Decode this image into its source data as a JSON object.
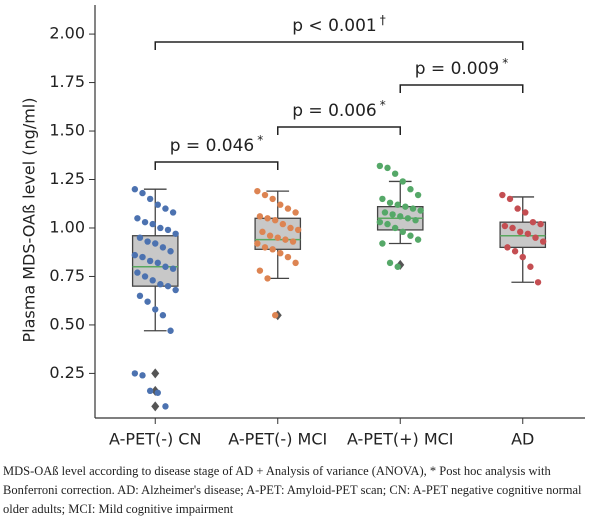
{
  "chart_data": {
    "type": "box",
    "y_label": "Plasma MDS-OAß level (ng/ml)",
    "categories": [
      "A-PET(-) CN",
      "A-PET(-) MCI",
      "A-PET(+) MCI",
      "AD"
    ],
    "ylim": [
      0.02,
      2.15
    ],
    "yticks": [
      {
        "value": 0.25,
        "label": "0.25"
      },
      {
        "value": 0.5,
        "label": "0.50"
      },
      {
        "value": 0.75,
        "label": "0.75"
      },
      {
        "value": 1,
        "label": "1.00"
      },
      {
        "value": 1.25,
        "label": "1.25"
      },
      {
        "value": 1.5,
        "label": "1.50"
      },
      {
        "value": 1.75,
        "label": "1.75"
      },
      {
        "value": 2,
        "label": "2.00"
      }
    ],
    "box_color": "#c8c8c8",
    "median_color": "#5aa85f",
    "boxes": [
      {
        "color": "#4c72b0",
        "q1": 0.7,
        "median": 0.8,
        "q3": 0.96,
        "whislo": 0.47,
        "whishi": 1.2,
        "outliers": [
          0.25,
          0.16,
          0.08
        ],
        "points": [
          1.2,
          1.18,
          1.15,
          1.12,
          1.1,
          1.08,
          1.05,
          1.03,
          1.02,
          1.0,
          0.99,
          0.97,
          0.95,
          0.93,
          0.92,
          0.9,
          0.88,
          0.86,
          0.85,
          0.83,
          0.82,
          0.8,
          0.79,
          0.77,
          0.75,
          0.73,
          0.71,
          0.7,
          0.68,
          0.65,
          0.62,
          0.58,
          0.55,
          0.47,
          0.25,
          0.24,
          0.16,
          0.15,
          0.08
        ]
      },
      {
        "color": "#dd8452",
        "q1": 0.89,
        "median": 0.94,
        "q3": 1.05,
        "whislo": 0.74,
        "whishi": 1.19,
        "outliers": [
          0.55
        ],
        "points": [
          1.19,
          1.17,
          1.15,
          1.12,
          1.1,
          1.08,
          1.06,
          1.05,
          1.04,
          1.02,
          1.0,
          0.99,
          0.98,
          0.96,
          0.95,
          0.94,
          0.93,
          0.92,
          0.9,
          0.89,
          0.87,
          0.85,
          0.82,
          0.78,
          0.74,
          0.55
        ]
      },
      {
        "color": "#55a868",
        "q1": 0.99,
        "median": 1.05,
        "q3": 1.11,
        "whislo": 0.92,
        "whishi": 1.24,
        "outliers": [
          0.81
        ],
        "points": [
          1.32,
          1.31,
          1.28,
          1.24,
          1.2,
          1.17,
          1.15,
          1.13,
          1.12,
          1.11,
          1.1,
          1.09,
          1.08,
          1.07,
          1.06,
          1.05,
          1.04,
          1.03,
          1.02,
          1.0,
          0.98,
          0.96,
          0.94,
          0.92,
          0.82,
          0.8
        ]
      },
      {
        "color": "#c44e52",
        "q1": 0.9,
        "median": 0.96,
        "q3": 1.03,
        "whislo": 0.72,
        "whishi": 1.16,
        "outliers": [],
        "points": [
          1.17,
          1.15,
          1.1,
          1.08,
          1.03,
          1.02,
          1.01,
          1.0,
          0.98,
          0.97,
          0.95,
          0.93,
          0.9,
          0.88,
          0.85,
          0.8,
          0.72
        ]
      }
    ],
    "annotations": [
      {
        "text": "p < 0.001",
        "sup": "†"
      },
      {
        "text": "p = 0.009",
        "sup": "*"
      },
      {
        "text": "p = 0.006",
        "sup": "*"
      },
      {
        "text": "p = 0.046",
        "sup": "*"
      }
    ]
  },
  "caption": "MDS-OAß level according to disease stage of AD + Analysis of variance (ANOVA), * Post hoc analysis with Bonferroni correction. AD: Alzheimer's disease; A-PET: Amyloid-PET scan; CN: A-PET negative cognitive normal older adults; MCI: Mild cognitive impairment"
}
